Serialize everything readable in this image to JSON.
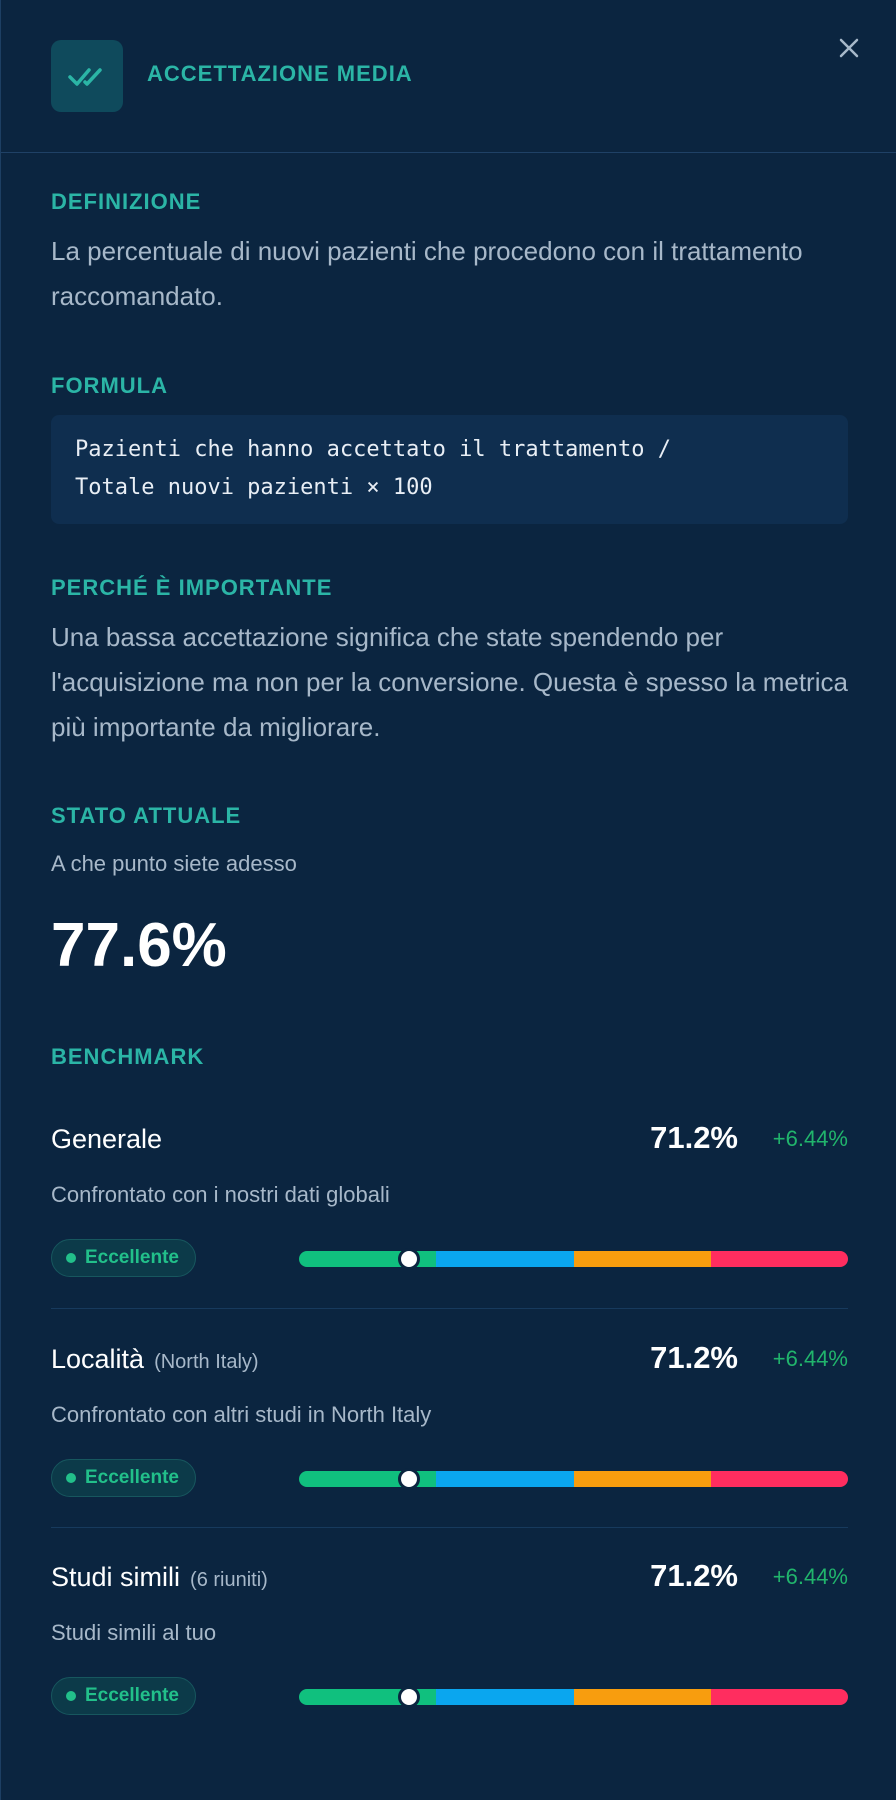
{
  "header": {
    "title": "ACCETTAZIONE MEDIA",
    "icon": "double-check-icon",
    "close_icon": "close-icon"
  },
  "definition": {
    "label": "DEFINIZIONE",
    "text": "La percentuale di nuovi pazienti che procedono con il trattamento raccomandato."
  },
  "formula": {
    "label": "FORMULA",
    "text": "Pazienti che hanno accettato il trattamento /\nTotale nuovi pazienti × 100"
  },
  "importance": {
    "label": "PERCHÉ È IMPORTANTE",
    "text": "Una bassa accettazione significa che state spendendo per l'acquisizione ma non per la conversione. Questa è spesso la metrica più importante da migliorare."
  },
  "current": {
    "label": "STATO ATTUALE",
    "subtitle": "A che punto siete adesso",
    "value": "77.6%"
  },
  "benchmark": {
    "label": "BENCHMARK",
    "bar_colors": [
      "#10c07e",
      "#0aa6ef",
      "#f89d0e",
      "#ff2d5f"
    ],
    "items": [
      {
        "name": "Generale",
        "qualifier": "",
        "value": "71.2%",
        "delta": "+6.44%",
        "description": "Confrontato con i nostri dati globali",
        "badge": "Eccellente",
        "marker_fraction": 0.2
      },
      {
        "name": "Località",
        "qualifier": "(North Italy)",
        "value": "71.2%",
        "delta": "+6.44%",
        "description": "Confrontato con altri studi in North Italy",
        "badge": "Eccellente",
        "marker_fraction": 0.2
      },
      {
        "name": "Studi simili",
        "qualifier": "(6 riuniti)",
        "value": "71.2%",
        "delta": "+6.44%",
        "description": "Studi simili al tuo",
        "badge": "Eccellente",
        "marker_fraction": 0.2
      }
    ]
  }
}
